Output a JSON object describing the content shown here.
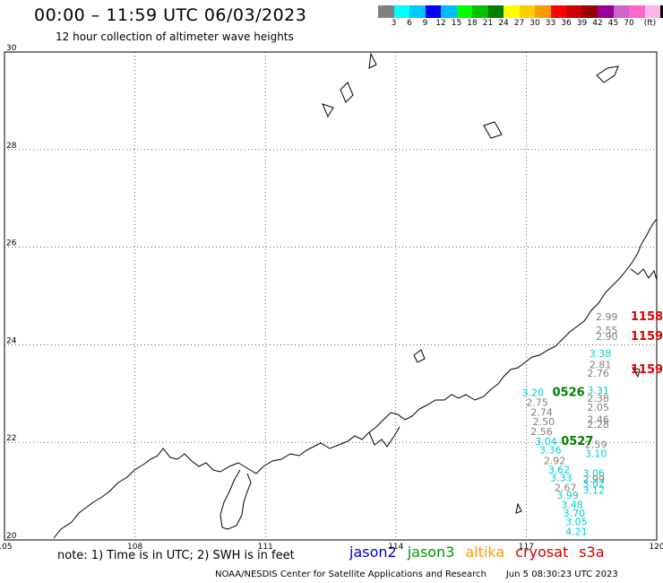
{
  "header": {
    "title": "00:00 – 11:59 UTC 06/03/2023",
    "subtitle": "12 hour collection of altimeter wave heights"
  },
  "colorbar": {
    "colors": [
      "#808080",
      "#00ffff",
      "#00c8ff",
      "#0000ff",
      "#00bfff",
      "#00ff00",
      "#00c000",
      "#008000",
      "#ffff00",
      "#ffcc00",
      "#ff9900",
      "#ff0000",
      "#cc0000",
      "#990000",
      "#990099",
      "#cc66cc",
      "#ff66cc",
      "#ffb6e6",
      "#000000"
    ],
    "labels": [
      "3",
      "6",
      "9",
      "12",
      "15",
      "18",
      "21",
      "24",
      "27",
      "30",
      "33",
      "36",
      "39",
      "42",
      "45",
      "70"
    ],
    "unit": "(ft)"
  },
  "chart_data": {
    "type": "map",
    "lon_range": [
      105,
      120
    ],
    "lat_range": [
      20,
      30
    ],
    "x_ticks": [
      "105",
      "108",
      "111",
      "114",
      "117",
      "120"
    ],
    "y_ticks": [
      "30",
      "28",
      "26",
      "24",
      "22",
      "20"
    ],
    "grid": true,
    "observations": [
      {
        "text": "2.99",
        "lon": 118.6,
        "lat": 24.5,
        "color": "#808080"
      },
      {
        "text": "2.55",
        "lon": 118.6,
        "lat": 24.23,
        "color": "#808080"
      },
      {
        "text": "2.90",
        "lon": 118.6,
        "lat": 24.1,
        "color": "#808080"
      },
      {
        "text": "3.38",
        "lon": 118.45,
        "lat": 23.75,
        "color": "#00cccc"
      },
      {
        "text": "2.81",
        "lon": 118.45,
        "lat": 23.52,
        "color": "#808080"
      },
      {
        "text": "2.76",
        "lon": 118.4,
        "lat": 23.35,
        "color": "#808080"
      },
      {
        "text": "3.31",
        "lon": 118.4,
        "lat": 23.0,
        "color": "#00cccc"
      },
      {
        "text": "2.38",
        "lon": 118.4,
        "lat": 22.83,
        "color": "#808080"
      },
      {
        "text": "2.05",
        "lon": 118.4,
        "lat": 22.65,
        "color": "#808080"
      },
      {
        "text": "3.20",
        "lon": 116.9,
        "lat": 22.95,
        "color": "#00cccc"
      },
      {
        "text": "2.75",
        "lon": 117.0,
        "lat": 22.75,
        "color": "#808080"
      },
      {
        "text": "2.74",
        "lon": 117.1,
        "lat": 22.55,
        "color": "#808080"
      },
      {
        "text": "2.50",
        "lon": 117.15,
        "lat": 22.35,
        "color": "#808080"
      },
      {
        "text": "2.56",
        "lon": 117.1,
        "lat": 22.15,
        "color": "#808080"
      },
      {
        "text": "2.46",
        "lon": 118.4,
        "lat": 22.4,
        "color": "#808080"
      },
      {
        "text": "2.28",
        "lon": 118.4,
        "lat": 22.3,
        "color": "#808080"
      },
      {
        "text": "3.04",
        "lon": 117.2,
        "lat": 21.95,
        "color": "#00cccc"
      },
      {
        "text": "3.36",
        "lon": 117.3,
        "lat": 21.77,
        "color": "#00cccc"
      },
      {
        "text": "2.59",
        "lon": 118.35,
        "lat": 21.88,
        "color": "#808080"
      },
      {
        "text": "3.10",
        "lon": 118.35,
        "lat": 21.7,
        "color": "#00cccc"
      },
      {
        "text": "2.92",
        "lon": 117.4,
        "lat": 21.55,
        "color": "#808080"
      },
      {
        "text": "3.62",
        "lon": 117.5,
        "lat": 21.37,
        "color": "#00cccc"
      },
      {
        "text": "3.33",
        "lon": 117.55,
        "lat": 21.2,
        "color": "#00cccc"
      },
      {
        "text": "3.06",
        "lon": 118.3,
        "lat": 21.3,
        "color": "#00cccc"
      },
      {
        "text": "2.99",
        "lon": 118.3,
        "lat": 21.18,
        "color": "#808080"
      },
      {
        "text": "3.02",
        "lon": 118.3,
        "lat": 21.08,
        "color": "#00cccc"
      },
      {
        "text": "2.67",
        "lon": 117.65,
        "lat": 21.0,
        "color": "#808080"
      },
      {
        "text": "3.12",
        "lon": 118.3,
        "lat": 20.95,
        "color": "#00cccc"
      },
      {
        "text": "3.99",
        "lon": 117.7,
        "lat": 20.85,
        "color": "#00cccc"
      },
      {
        "text": "3.48",
        "lon": 117.8,
        "lat": 20.65,
        "color": "#00cccc"
      },
      {
        "text": "3.70",
        "lon": 117.85,
        "lat": 20.48,
        "color": "#00cccc"
      },
      {
        "text": "3.05",
        "lon": 117.9,
        "lat": 20.3,
        "color": "#00cccc"
      },
      {
        "text": "4.21",
        "lon": 117.9,
        "lat": 20.1,
        "color": "#00cccc"
      }
    ],
    "pass_times": [
      {
        "text": "1158",
        "lon": 119.4,
        "lat": 24.5,
        "color": "#dd0000"
      },
      {
        "text": "1159",
        "lon": 119.4,
        "lat": 24.1,
        "color": "#dd0000"
      },
      {
        "text": "1159",
        "lon": 119.4,
        "lat": 23.42,
        "color": "#dd0000"
      },
      {
        "text": "0526",
        "lon": 117.6,
        "lat": 22.95,
        "color": "#008000"
      },
      {
        "text": "0527",
        "lon": 117.8,
        "lat": 21.95,
        "color": "#008000"
      }
    ]
  },
  "footer": {
    "note": "note: 1) Time is in UTC; 2) SWH is in feet",
    "missions": [
      {
        "name": "jason2",
        "color": "#0000cc"
      },
      {
        "name": "jason3",
        "color": "#009900"
      },
      {
        "name": "altika",
        "color": "#ff9900"
      },
      {
        "name": "cryosat",
        "color": "#cc0000"
      },
      {
        "name": "s3a",
        "color": "#cc0000"
      }
    ],
    "credit": "NOAA/NESDIS Center for Satellite Applications and Research",
    "timestamp": "Jun 5 08:30:23 UTC 2023"
  }
}
